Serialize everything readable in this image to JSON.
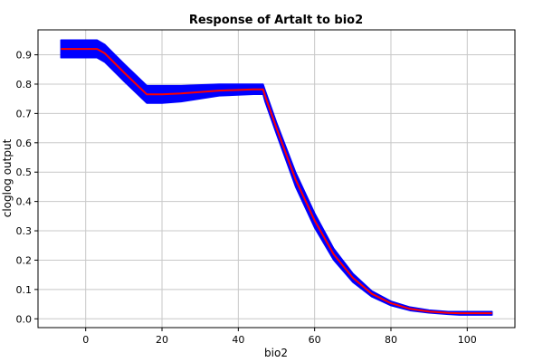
{
  "chart_data": {
    "type": "line",
    "title": "Response of Artalt to bio2",
    "xlabel": "bio2",
    "ylabel": "cloglog output",
    "xlim": [
      -12.5,
      112.5
    ],
    "ylim": [
      -0.03,
      0.985
    ],
    "x_ticks": [
      "0",
      "20",
      "40",
      "60",
      "80",
      "100"
    ],
    "x_tick_values": [
      0,
      20,
      40,
      60,
      80,
      100
    ],
    "y_ticks": [
      "0.0",
      "0.1",
      "0.2",
      "0.3",
      "0.4",
      "0.5",
      "0.6",
      "0.7",
      "0.8",
      "0.9"
    ],
    "y_tick_values": [
      0.0,
      0.1,
      0.2,
      0.3,
      0.4,
      0.5,
      0.6,
      0.7,
      0.8,
      0.9
    ],
    "grid": true,
    "series": [
      {
        "role": "band",
        "color": "#0000ff",
        "x": [
          -6.5,
          3,
          5,
          10,
          16,
          20,
          25,
          35,
          44,
          46.5,
          47,
          50,
          55,
          60,
          65,
          70,
          75,
          80,
          85,
          90,
          95,
          98,
          100,
          106.5
        ],
        "upper": [
          0.95,
          0.95,
          0.935,
          0.87,
          0.795,
          0.795,
          0.795,
          0.8,
          0.8,
          0.8,
          0.78,
          0.67,
          0.5,
          0.36,
          0.24,
          0.155,
          0.095,
          0.06,
          0.04,
          0.03,
          0.025,
          0.025,
          0.025,
          0.025
        ],
        "lower": [
          0.89,
          0.89,
          0.875,
          0.81,
          0.735,
          0.735,
          0.74,
          0.76,
          0.765,
          0.765,
          0.74,
          0.63,
          0.45,
          0.31,
          0.2,
          0.125,
          0.075,
          0.045,
          0.028,
          0.02,
          0.015,
          0.013,
          0.013,
          0.013
        ]
      },
      {
        "role": "mean",
        "color": "#ff0000",
        "x": [
          -6.5,
          3,
          5,
          10,
          16,
          20,
          25,
          35,
          44,
          46.5,
          47,
          50,
          55,
          60,
          65,
          70,
          75,
          80,
          85,
          90,
          95,
          98,
          100,
          106.5
        ],
        "values": [
          0.92,
          0.92,
          0.905,
          0.84,
          0.765,
          0.765,
          0.768,
          0.778,
          0.782,
          0.782,
          0.76,
          0.65,
          0.475,
          0.335,
          0.22,
          0.14,
          0.085,
          0.053,
          0.034,
          0.025,
          0.02,
          0.019,
          0.019,
          0.019
        ]
      }
    ]
  }
}
